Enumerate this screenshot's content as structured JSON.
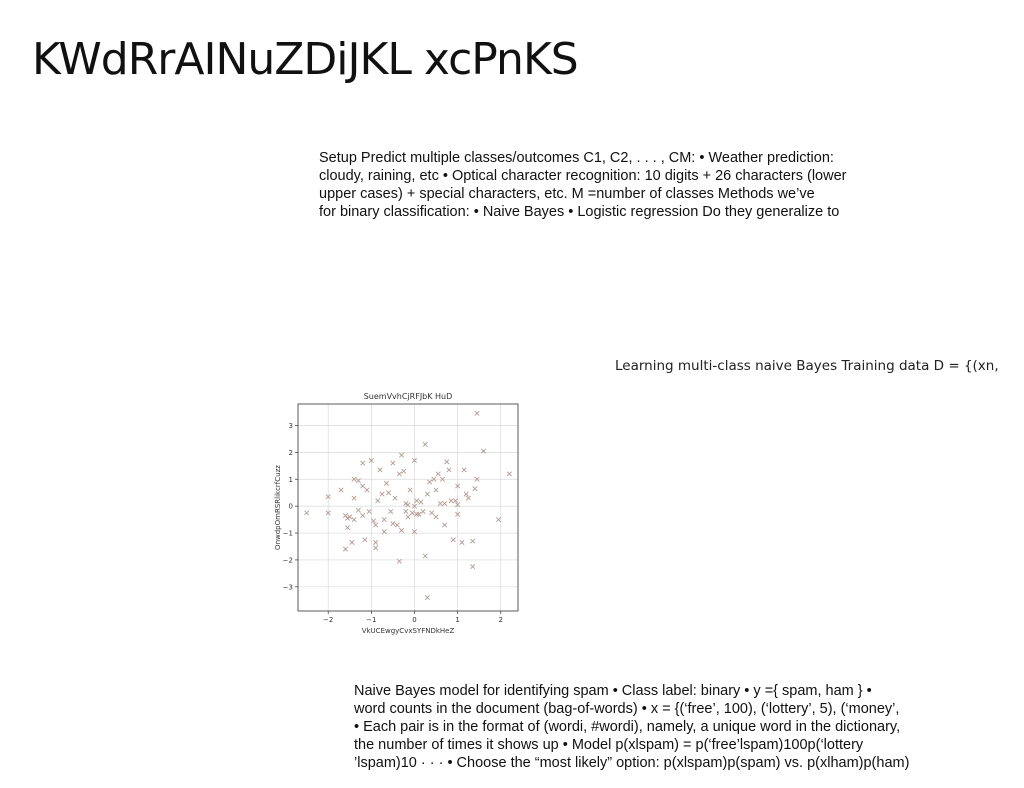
{
  "slide": {
    "title": "KWdRrAINuZDiJKL xcPnKS",
    "paragraph_1": {
      "lines": [
        "Setup Predict multiple classes/outcomes C1, C2, . . . , CM: • Weather prediction:",
        "cloudy, raining, etc • Optical character recognition: 10 digits + 26 characters (lower",
        "upper cases) + special characters, etc. M =number of classes Methods we’ve",
        "for binary classification: • Naive Bayes • Logistic regression Do they generalize to"
      ]
    },
    "caption": "Learning multi-class naive Bayes Training data D = {(xn,",
    "paragraph_2": {
      "lines": [
        "Naive Bayes model for identifying spam • Class label: binary • y ={ spam, ham } •",
        "word counts in the document (bag-of-words) • x = {(‘free’, 100), (‘lottery’, 5), (‘money’,",
        "• Each pair is in the format of (wordi, #wordi), namely, a unique word in the dictionary,",
        "the number of times it shows up • Model p(xlspam) = p(‘free’lspam)100p(‘lottery",
        "’lspam)10 · · · • Choose the “most likely” option: p(xlspam)p(spam) vs. p(xlham)p(ham)"
      ]
    }
  },
  "chart_data": {
    "type": "scatter",
    "title": "SuemVvhCjRFJbK HuD",
    "xlabel": "VkUCEwgyCvxSYFNDkHeZ",
    "ylabel": "OnwdpOmRSRlikcrfCuzz",
    "xlim": [
      -2.7,
      2.4
    ],
    "ylim": [
      -3.9,
      3.8
    ],
    "xticks": [
      -2,
      -1,
      0,
      1,
      2
    ],
    "yticks": [
      -3,
      -2,
      -1,
      0,
      1,
      2,
      3
    ],
    "grid": true,
    "marker": "x",
    "color": "#b39a95",
    "points": [
      [
        -2.5,
        -0.25
      ],
      [
        -2.0,
        0.35
      ],
      [
        -2.0,
        -0.25
      ],
      [
        -1.7,
        0.6
      ],
      [
        -1.6,
        -0.35
      ],
      [
        -1.6,
        -1.6
      ],
      [
        -1.55,
        -0.45
      ],
      [
        -1.55,
        -0.8
      ],
      [
        -1.5,
        -0.4
      ],
      [
        -1.45,
        -1.35
      ],
      [
        -1.4,
        1.0
      ],
      [
        -1.4,
        0.3
      ],
      [
        -1.4,
        -0.5
      ],
      [
        -1.3,
        0.95
      ],
      [
        -1.3,
        -0.15
      ],
      [
        -1.2,
        1.6
      ],
      [
        -1.2,
        0.75
      ],
      [
        -1.2,
        -0.35
      ],
      [
        -1.15,
        -1.25
      ],
      [
        -1.1,
        0.6
      ],
      [
        -1.05,
        -0.2
      ],
      [
        -1.0,
        1.7
      ],
      [
        -0.95,
        -0.55
      ],
      [
        -0.9,
        -0.7
      ],
      [
        -0.9,
        -1.35
      ],
      [
        -0.9,
        -1.55
      ],
      [
        -0.85,
        0.2
      ],
      [
        -0.8,
        1.35
      ],
      [
        -0.75,
        0.45
      ],
      [
        -0.7,
        -0.5
      ],
      [
        -0.7,
        -0.95
      ],
      [
        -0.65,
        0.85
      ],
      [
        -0.6,
        0.5
      ],
      [
        -0.55,
        -0.2
      ],
      [
        -0.5,
        -0.65
      ],
      [
        -0.5,
        1.6
      ],
      [
        -0.45,
        0.3
      ],
      [
        -0.4,
        -0.7
      ],
      [
        -0.35,
        1.2
      ],
      [
        -0.35,
        -2.05
      ],
      [
        -0.3,
        1.9
      ],
      [
        -0.3,
        -0.9
      ],
      [
        -0.25,
        1.3
      ],
      [
        -0.2,
        -0.2
      ],
      [
        -0.2,
        0.1
      ],
      [
        -0.15,
        0.05
      ],
      [
        -0.15,
        -0.4
      ],
      [
        -0.1,
        0.6
      ],
      [
        -0.05,
        -0.25
      ],
      [
        0.0,
        1.7
      ],
      [
        0.0,
        0.0
      ],
      [
        0.0,
        -0.95
      ],
      [
        0.05,
        0.2
      ],
      [
        0.05,
        -0.3
      ],
      [
        0.1,
        -0.3
      ],
      [
        0.15,
        0.15
      ],
      [
        0.2,
        -0.2
      ],
      [
        0.25,
        2.3
      ],
      [
        0.25,
        -1.85
      ],
      [
        0.3,
        0.45
      ],
      [
        0.3,
        -3.4
      ],
      [
        0.35,
        0.9
      ],
      [
        0.4,
        -0.25
      ],
      [
        0.45,
        1.0
      ],
      [
        0.5,
        0.6
      ],
      [
        0.5,
        -0.4
      ],
      [
        0.55,
        1.2
      ],
      [
        0.6,
        0.1
      ],
      [
        0.65,
        1.0
      ],
      [
        0.7,
        0.1
      ],
      [
        0.7,
        -0.7
      ],
      [
        0.75,
        1.65
      ],
      [
        0.8,
        1.35
      ],
      [
        0.85,
        0.2
      ],
      [
        0.9,
        -1.25
      ],
      [
        0.95,
        0.2
      ],
      [
        1.0,
        -0.3
      ],
      [
        1.0,
        0.05
      ],
      [
        1.0,
        0.75
      ],
      [
        1.1,
        -1.35
      ],
      [
        1.15,
        1.35
      ],
      [
        1.2,
        0.45
      ],
      [
        1.25,
        0.3
      ],
      [
        1.35,
        -2.25
      ],
      [
        1.35,
        -1.3
      ],
      [
        1.4,
        0.65
      ],
      [
        1.45,
        1.0
      ],
      [
        1.45,
        3.45
      ],
      [
        1.6,
        2.05
      ],
      [
        1.95,
        -0.5
      ],
      [
        2.2,
        1.2
      ]
    ]
  }
}
